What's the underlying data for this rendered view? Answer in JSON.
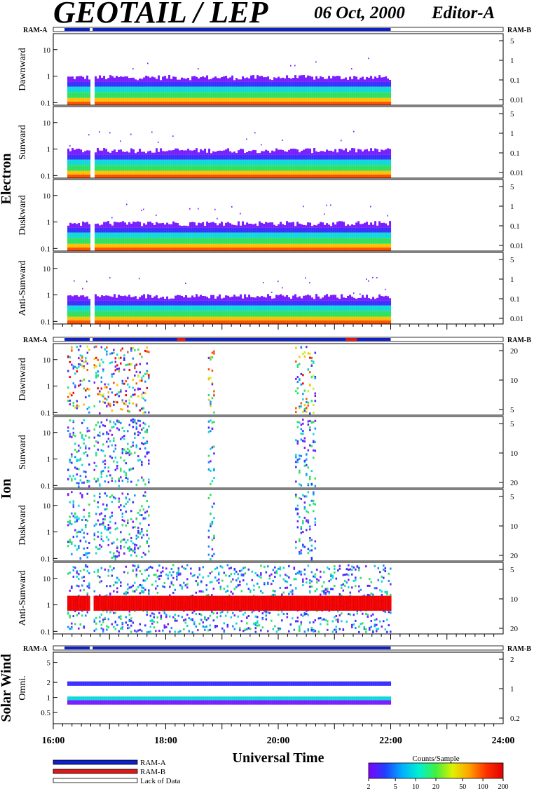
{
  "title": "GEOTAIL / LEP",
  "date": "06 Oct, 2000",
  "editor": "Editor-A",
  "colors": {
    "ram_a": "#1020c8",
    "ram_b": "#e01818",
    "lack": "#ffffff"
  },
  "groups": [
    {
      "name": "Electron",
      "ram_left": "RAM-A",
      "ram_right": "RAM-B",
      "panels": [
        {
          "label": "Dawnward",
          "ylim": [
            0.08,
            40
          ],
          "y_ticks": [
            "0.1",
            "1",
            "10"
          ],
          "right_ticks": [
            "5",
            "1",
            "0.1",
            "0.01"
          ]
        },
        {
          "label": "Sunward",
          "ylim": [
            0.08,
            40
          ],
          "y_ticks": [
            "0.1",
            "1",
            "10"
          ],
          "right_ticks": [
            "5",
            "1",
            "0.1",
            "0.01"
          ]
        },
        {
          "label": "Duskward",
          "ylim": [
            0.08,
            40
          ],
          "y_ticks": [
            "0.1",
            "1",
            "10"
          ],
          "right_ticks": [
            "5",
            "1",
            "0.1",
            "0.01"
          ]
        },
        {
          "label": "Anti-Sunward",
          "ylim": [
            0.08,
            40
          ],
          "y_ticks": [
            "0.1",
            "1",
            "10"
          ],
          "right_ticks": [
            "5",
            "1",
            "0.1",
            "0.01"
          ]
        }
      ]
    },
    {
      "name": "Ion",
      "ram_left": "RAM-A",
      "ram_right": "RAM-B",
      "panels": [
        {
          "label": "Dawnward",
          "ylim": [
            0.08,
            40
          ],
          "y_ticks": [
            "0.1",
            "1",
            "10"
          ],
          "right_ticks": [
            "20",
            "10",
            "5"
          ]
        },
        {
          "label": "Sunward",
          "ylim": [
            0.08,
            40
          ],
          "y_ticks": [
            "0.1",
            "1",
            "10"
          ],
          "right_ticks": [
            "5",
            "10",
            "20"
          ]
        },
        {
          "label": "Duskward",
          "ylim": [
            0.08,
            40
          ],
          "y_ticks": [
            "0.1",
            "1",
            "10"
          ],
          "right_ticks": [
            "5",
            "10",
            "20"
          ]
        },
        {
          "label": "Anti-Sunward",
          "ylim": [
            0.08,
            40
          ],
          "y_ticks": [
            "0.1",
            "1",
            "10"
          ],
          "right_ticks": [
            "5",
            "10",
            "20"
          ]
        }
      ]
    },
    {
      "name": "Solar Wind",
      "ram_left": "RAM-A",
      "ram_right": "RAM-B",
      "panels": [
        {
          "label": "Omni.",
          "ylim": [
            0.3,
            8
          ],
          "y_ticks": [
            "0.5",
            "1",
            "2",
            "5"
          ],
          "right_ticks": [
            "2",
            "1",
            "0.2"
          ]
        }
      ]
    }
  ],
  "x_axis": {
    "label": "Universal Time",
    "ticks": [
      "16:00",
      "18:00",
      "20:00",
      "22:00",
      "24:00"
    ]
  },
  "legend": {
    "items": [
      "RAM-A",
      "RAM-B",
      "Lack of Data"
    ]
  },
  "colorbar": {
    "title": "Counts/Sample",
    "ticks": [
      "2",
      "5",
      "10",
      "20",
      "50",
      "100",
      "200"
    ]
  },
  "chart_data": {
    "type": "heatmap",
    "x_range_hours": [
      16,
      24
    ],
    "data_span_hours": [
      16.25,
      22.0
    ],
    "data_gaps_hours": [
      [
        16.65,
        16.7
      ]
    ],
    "ram_b_intervals_hours": [
      [
        18.2,
        18.35
      ],
      [
        21.2,
        21.4
      ]
    ],
    "y_scale": "log",
    "colorscale": "Counts/Sample, 2 to 200"
  }
}
